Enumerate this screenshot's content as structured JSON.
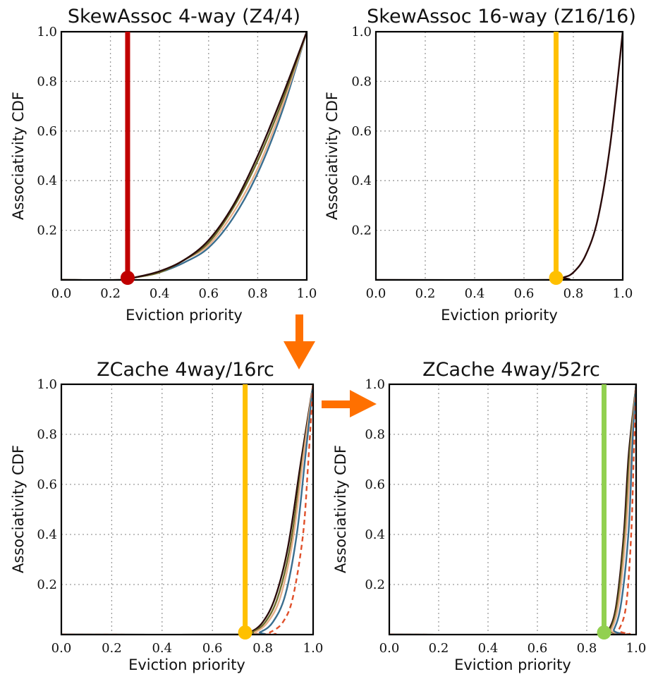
{
  "chart_data": [
    {
      "type": "line",
      "title": "SkewAssoc 4-way (Z4/4)",
      "xlabel": "Eviction priority",
      "ylabel": "Associativity CDF",
      "xlim": [
        0,
        1
      ],
      "ylim": [
        0,
        1
      ],
      "xticks": [
        "0.0",
        "0.2",
        "0.4",
        "0.6",
        "0.8",
        "1.0"
      ],
      "yticks": [
        "0.2",
        "0.4",
        "0.6",
        "0.8",
        "1.0"
      ],
      "grid": true,
      "series": [
        {
          "style": "blue",
          "points": [
            [
              0,
              0
            ],
            [
              0.25,
              0
            ],
            [
              0.3,
              0.01
            ],
            [
              0.4,
              0.03
            ],
            [
              0.5,
              0.07
            ],
            [
              0.6,
              0.13
            ],
            [
              0.7,
              0.25
            ],
            [
              0.8,
              0.43
            ],
            [
              0.9,
              0.68
            ],
            [
              1,
              1
            ]
          ]
        },
        {
          "style": "peach",
          "points": [
            [
              0,
              0
            ],
            [
              0.25,
              0
            ],
            [
              0.3,
              0.01
            ],
            [
              0.4,
              0.03
            ],
            [
              0.5,
              0.08
            ],
            [
              0.6,
              0.14
            ],
            [
              0.7,
              0.27
            ],
            [
              0.8,
              0.45
            ],
            [
              0.9,
              0.7
            ],
            [
              1,
              1
            ]
          ]
        },
        {
          "style": "olive",
          "points": [
            [
              0,
              0
            ],
            [
              0.25,
              0
            ],
            [
              0.3,
              0.01
            ],
            [
              0.4,
              0.03
            ],
            [
              0.5,
              0.08
            ],
            [
              0.6,
              0.15
            ],
            [
              0.7,
              0.29
            ],
            [
              0.8,
              0.48
            ],
            [
              0.9,
              0.72
            ],
            [
              1,
              1
            ]
          ]
        },
        {
          "style": "dark",
          "points": [
            [
              0,
              0
            ],
            [
              0.25,
              0
            ],
            [
              0.3,
              0.01
            ],
            [
              0.4,
              0.035
            ],
            [
              0.5,
              0.08
            ],
            [
              0.6,
              0.16
            ],
            [
              0.7,
              0.3
            ],
            [
              0.8,
              0.5
            ],
            [
              0.9,
              0.74
            ],
            [
              1,
              1
            ]
          ]
        }
      ],
      "marker": {
        "x": 0.27,
        "color": "#c00000"
      }
    },
    {
      "type": "line",
      "title": "SkewAssoc 16-way (Z16/16)",
      "xlabel": "Eviction priority",
      "ylabel": "Associativity CDF",
      "xlim": [
        0,
        1
      ],
      "ylim": [
        0,
        1
      ],
      "xticks": [
        "0.0",
        "0.2",
        "0.4",
        "0.6",
        "0.8",
        "1.0"
      ],
      "yticks": [
        "0.2",
        "0.4",
        "0.6",
        "0.8",
        "1.0"
      ],
      "grid": true,
      "series": [
        {
          "style": "dark",
          "points": [
            [
              0,
              0
            ],
            [
              0.72,
              0
            ],
            [
              0.76,
              0.01
            ],
            [
              0.8,
              0.03
            ],
            [
              0.85,
              0.1
            ],
            [
              0.9,
              0.25
            ],
            [
              0.95,
              0.55
            ],
            [
              1,
              1
            ]
          ]
        }
      ],
      "marker": {
        "x": 0.73,
        "color": "#ffc000"
      }
    },
    {
      "type": "line",
      "title": "ZCache 4way/16rc",
      "xlabel": "Eviction priority",
      "ylabel": "Associativity CDF",
      "xlim": [
        0,
        1
      ],
      "ylim": [
        0,
        1
      ],
      "xticks": [
        "0.0",
        "0.2",
        "0.4",
        "0.6",
        "0.8",
        "1.0"
      ],
      "yticks": [
        "0.2",
        "0.4",
        "0.6",
        "0.8",
        "1.0"
      ],
      "grid": true,
      "series": [
        {
          "style": "dark",
          "points": [
            [
              0,
              0
            ],
            [
              0.7,
              0
            ],
            [
              0.75,
              0.01
            ],
            [
              0.8,
              0.05
            ],
            [
              0.85,
              0.15
            ],
            [
              0.9,
              0.35
            ],
            [
              0.95,
              0.68
            ],
            [
              1,
              1
            ]
          ]
        },
        {
          "style": "olive",
          "points": [
            [
              0,
              0
            ],
            [
              0.71,
              0
            ],
            [
              0.76,
              0.01
            ],
            [
              0.81,
              0.05
            ],
            [
              0.86,
              0.15
            ],
            [
              0.91,
              0.36
            ],
            [
              0.955,
              0.68
            ],
            [
              1,
              1
            ]
          ]
        },
        {
          "style": "peach",
          "points": [
            [
              0,
              0
            ],
            [
              0.72,
              0
            ],
            [
              0.77,
              0.01
            ],
            [
              0.82,
              0.05
            ],
            [
              0.87,
              0.15
            ],
            [
              0.92,
              0.38
            ],
            [
              0.96,
              0.7
            ],
            [
              1,
              1
            ]
          ]
        },
        {
          "style": "blue",
          "points": [
            [
              0,
              0
            ],
            [
              0.74,
              0
            ],
            [
              0.79,
              0.01
            ],
            [
              0.84,
              0.05
            ],
            [
              0.89,
              0.16
            ],
            [
              0.935,
              0.4
            ],
            [
              0.97,
              0.72
            ],
            [
              1,
              1
            ]
          ]
        },
        {
          "style": "reddash",
          "points": [
            [
              0,
              0
            ],
            [
              0.78,
              0
            ],
            [
              0.83,
              0.01
            ],
            [
              0.88,
              0.05
            ],
            [
              0.92,
              0.15
            ],
            [
              0.96,
              0.4
            ],
            [
              0.98,
              0.68
            ],
            [
              1,
              1
            ]
          ]
        }
      ],
      "marker": {
        "x": 0.73,
        "color": "#ffc000"
      }
    },
    {
      "type": "line",
      "title": "ZCache 4way/52rc",
      "xlabel": "Eviction priority",
      "ylabel": "Associativity CDF",
      "xlim": [
        0,
        1
      ],
      "ylim": [
        0,
        1
      ],
      "xticks": [
        "0.0",
        "0.2",
        "0.4",
        "0.6",
        "0.8",
        "1.0"
      ],
      "yticks": [
        "0.2",
        "0.4",
        "0.6",
        "0.8",
        "1.0"
      ],
      "grid": true,
      "series": [
        {
          "style": "dark",
          "points": [
            [
              0,
              0
            ],
            [
              0.86,
              0
            ],
            [
              0.89,
              0.02
            ],
            [
              0.92,
              0.12
            ],
            [
              0.95,
              0.4
            ],
            [
              0.97,
              0.72
            ],
            [
              1,
              1
            ]
          ]
        },
        {
          "style": "olive",
          "points": [
            [
              0,
              0
            ],
            [
              0.865,
              0
            ],
            [
              0.895,
              0.02
            ],
            [
              0.925,
              0.13
            ],
            [
              0.955,
              0.42
            ],
            [
              0.975,
              0.74
            ],
            [
              1,
              1
            ]
          ]
        },
        {
          "style": "peach",
          "points": [
            [
              0,
              0
            ],
            [
              0.87,
              0
            ],
            [
              0.9,
              0.02
            ],
            [
              0.93,
              0.13
            ],
            [
              0.96,
              0.42
            ],
            [
              0.98,
              0.75
            ],
            [
              1,
              1
            ]
          ]
        },
        {
          "style": "blue",
          "points": [
            [
              0,
              0
            ],
            [
              0.88,
              0
            ],
            [
              0.91,
              0.02
            ],
            [
              0.94,
              0.13
            ],
            [
              0.97,
              0.42
            ],
            [
              0.985,
              0.76
            ],
            [
              1,
              1
            ]
          ]
        },
        {
          "style": "reddash",
          "points": [
            [
              0,
              0
            ],
            [
              0.9,
              0
            ],
            [
              0.93,
              0.02
            ],
            [
              0.96,
              0.12
            ],
            [
              0.98,
              0.4
            ],
            [
              0.99,
              0.7
            ],
            [
              1,
              1
            ]
          ]
        }
      ],
      "marker": {
        "x": 0.87,
        "color": "#92d050"
      }
    }
  ],
  "styles": {
    "blue": {
      "color": "#3a6e8f",
      "dash": ""
    },
    "peach": {
      "color": "#e8b08a",
      "dash": ""
    },
    "olive": {
      "color": "#6b6b2a",
      "dash": ""
    },
    "dark": {
      "color": "#2a0a0a",
      "dash": ""
    },
    "reddash": {
      "color": "#e0502a",
      "dash": "7 5"
    }
  },
  "arrow_color": "#ff7000"
}
